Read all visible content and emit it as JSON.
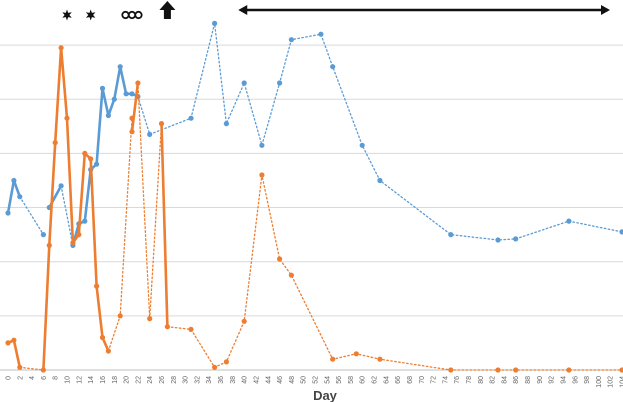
{
  "chart_data": {
    "type": "line",
    "xlabel": "Day",
    "ylabel": "",
    "xlim": [
      0,
      104
    ],
    "ylim": [
      0,
      6.5
    ],
    "grid": "horizontal",
    "x_ticks": [
      "0",
      "2",
      "4",
      "6",
      "8",
      "10",
      "12",
      "14",
      "16",
      "18",
      "20",
      "22",
      "24",
      "26",
      "28",
      "30",
      "32",
      "34",
      "36",
      "38",
      "40",
      "42",
      "44",
      "46",
      "48",
      "50",
      "52",
      "54",
      "56",
      "58",
      "60",
      "62",
      "64",
      "66",
      "68",
      "70",
      "72",
      "74",
      "76",
      "78",
      "80",
      "82",
      "84",
      "86",
      "88",
      "90",
      "92",
      "94",
      "96",
      "98",
      "100",
      "102",
      "104"
    ],
    "series": [
      {
        "color": "#5B9BD5",
        "segments": [
          {
            "style": "solid",
            "points": [
              [
                0,
                2.9
              ],
              [
                1,
                3.5
              ],
              [
                2,
                3.2
              ]
            ]
          },
          {
            "style": "dotted",
            "points": [
              [
                2,
                3.2
              ],
              [
                6,
                2.5
              ]
            ]
          },
          {
            "style": "solid",
            "points": [
              [
                7,
                3.0
              ],
              [
                9,
                3.4
              ]
            ]
          },
          {
            "style": "dotted",
            "points": [
              [
                9,
                3.4
              ],
              [
                11,
                2.3
              ]
            ]
          },
          {
            "style": "solid",
            "points": [
              [
                11,
                2.3
              ],
              [
                12,
                2.7
              ],
              [
                13,
                2.75
              ],
              [
                14,
                3.7
              ],
              [
                15,
                3.8
              ],
              [
                16,
                5.2
              ],
              [
                17,
                4.7
              ],
              [
                18,
                5.0
              ],
              [
                19,
                5.6
              ],
              [
                20,
                5.1
              ],
              [
                21,
                5.1
              ],
              [
                22,
                5.05
              ]
            ]
          },
          {
            "style": "dotted",
            "points": [
              [
                22,
                5.05
              ],
              [
                24,
                4.35
              ],
              [
                31,
                4.65
              ],
              [
                35,
                6.4
              ],
              [
                37,
                4.55
              ],
              [
                40,
                5.3
              ],
              [
                43,
                4.15
              ],
              [
                46,
                5.3
              ],
              [
                48,
                6.1
              ],
              [
                53,
                6.2
              ],
              [
                55,
                5.6
              ],
              [
                60,
                4.15
              ],
              [
                63,
                3.5
              ],
              [
                75,
                2.5
              ],
              [
                83,
                2.4
              ],
              [
                86,
                2.42
              ],
              [
                95,
                2.75
              ],
              [
                104,
                2.55
              ]
            ]
          }
        ]
      },
      {
        "color": "#ED7D31",
        "segments": [
          {
            "style": "solid",
            "points": [
              [
                0,
                0.5
              ],
              [
                1,
                0.55
              ],
              [
                2,
                0.05
              ]
            ]
          },
          {
            "style": "dotted",
            "points": [
              [
                2,
                0.05
              ],
              [
                6,
                0.0
              ]
            ]
          },
          {
            "style": "solid",
            "points": [
              [
                6,
                0.0
              ],
              [
                7,
                2.3
              ],
              [
                8,
                4.2
              ],
              [
                9,
                5.95
              ],
              [
                10,
                4.65
              ],
              [
                11,
                2.35
              ],
              [
                12,
                2.5
              ],
              [
                13,
                4.0
              ],
              [
                14,
                3.9
              ],
              [
                15,
                1.55
              ],
              [
                16,
                0.6
              ],
              [
                17,
                0.35
              ]
            ]
          },
          {
            "style": "dotted",
            "points": [
              [
                17,
                0.35
              ],
              [
                19,
                1.0
              ],
              [
                21,
                4.65
              ]
            ]
          },
          {
            "style": "solid",
            "points": [
              [
                21,
                4.4
              ],
              [
                22,
                5.3
              ]
            ]
          },
          {
            "style": "dotted",
            "points": [
              [
                22,
                5.3
              ],
              [
                24,
                0.95
              ],
              [
                26,
                4.55
              ]
            ]
          },
          {
            "style": "solid",
            "points": [
              [
                26,
                4.55
              ],
              [
                27,
                0.8
              ]
            ]
          },
          {
            "style": "dotted",
            "points": [
              [
                27,
                0.8
              ],
              [
                31,
                0.75
              ],
              [
                35,
                0.05
              ],
              [
                37,
                0.15
              ],
              [
                40,
                0.9
              ],
              [
                43,
                3.6
              ],
              [
                46,
                2.05
              ],
              [
                48,
                1.75
              ],
              [
                55,
                0.2
              ],
              [
                59,
                0.3
              ],
              [
                63,
                0.2
              ],
              [
                75,
                0.0
              ],
              [
                83,
                0.0
              ],
              [
                86,
                0.0
              ],
              [
                95,
                0.0
              ],
              [
                104,
                0.0
              ]
            ]
          }
        ]
      }
    ],
    "annotations": [
      {
        "type": "star-icon",
        "x": 10
      },
      {
        "type": "star-icon",
        "x": 14
      },
      {
        "type": "infinity-icon",
        "x": 21
      },
      {
        "type": "up-arrow-icon",
        "x": 27
      },
      {
        "type": "double-arrow-icon",
        "x_range": [
          39,
          104
        ]
      }
    ]
  }
}
